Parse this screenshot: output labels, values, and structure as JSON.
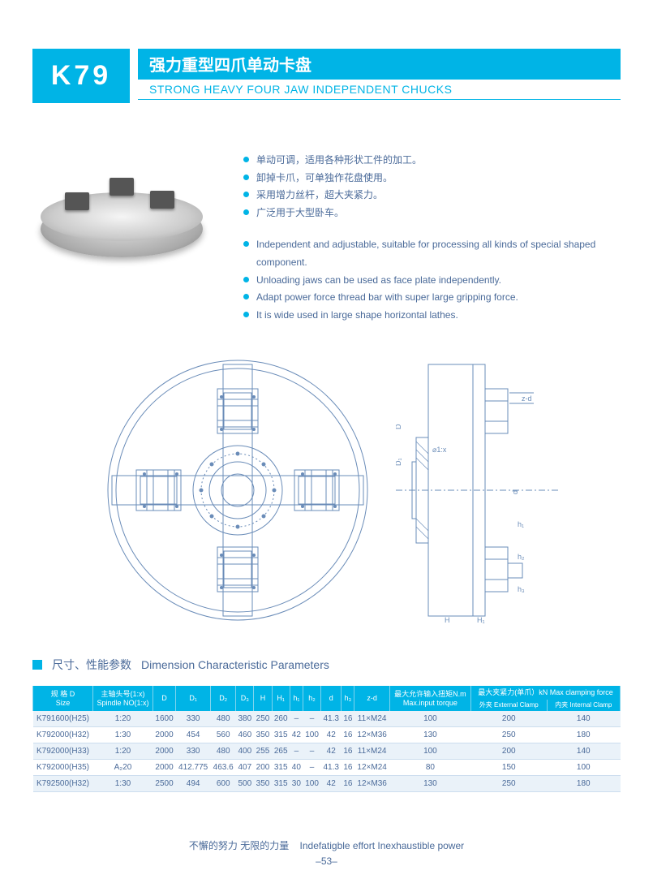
{
  "header": {
    "code": "K79",
    "title_cn": "强力重型四爪单动卡盘",
    "title_en": "STRONG HEAVY FOUR JAW INDEPENDENT CHUCKS"
  },
  "features": {
    "cn": [
      "单动可调，适用各种形状工件的加工。",
      "卸掉卡爪，可单独作花盘使用。",
      "采用增力丝杆，超大夹紧力。",
      "广泛用于大型卧车。"
    ],
    "en": [
      "Independent and adjustable, suitable for processing all kinds of special shaped component.",
      "Unloading jaws can be used as face plate independently.",
      "Adapt power force thread bar with super large gripping force.",
      "It is wide used in large shape horizontal lathes."
    ]
  },
  "section": {
    "label_cn": "尺寸、性能参数",
    "label_en": "Dimension  Characteristic Parameters"
  },
  "table": {
    "columns_top": [
      {
        "label_cn": "规 格 D",
        "label_en": "Size",
        "rowspan": 2
      },
      {
        "label_cn": "主轴头号(1:x)",
        "label_en": "Spindle NO(1:x)",
        "rowspan": 2
      },
      {
        "label": "D",
        "rowspan": 2
      },
      {
        "label": "D₁",
        "rowspan": 2
      },
      {
        "label": "D₂",
        "rowspan": 2
      },
      {
        "label": "D₃",
        "rowspan": 2
      },
      {
        "label": "H",
        "rowspan": 2
      },
      {
        "label": "H₁",
        "rowspan": 2
      },
      {
        "label": "h₁",
        "rowspan": 2
      },
      {
        "label": "h₂",
        "rowspan": 2
      },
      {
        "label": "d",
        "rowspan": 2
      },
      {
        "label": "h₃",
        "rowspan": 2
      },
      {
        "label": "z-d",
        "rowspan": 2
      },
      {
        "label_cn": "最大允许输入扭矩N.m",
        "label_en": "Max.input torque",
        "rowspan": 2
      },
      {
        "label_cn": "最大夹紧力(单爪）kN Max clamping force",
        "colspan": 2
      }
    ],
    "columns_sub": [
      {
        "label": "外夹 External Clamp"
      },
      {
        "label": "内夹 Internal Clamp"
      }
    ],
    "rows": [
      [
        "K791600(H25)",
        "1:20",
        "1600",
        "330",
        "480",
        "380",
        "250",
        "260",
        "–",
        "–",
        "41.3",
        "16",
        "11×M24",
        "100",
        "200",
        "140"
      ],
      [
        "K792000(H32)",
        "1:30",
        "2000",
        "454",
        "560",
        "460",
        "350",
        "315",
        "42",
        "100",
        "42",
        "16",
        "12×M36",
        "130",
        "250",
        "180"
      ],
      [
        "K792000(H33)",
        "1:20",
        "2000",
        "330",
        "480",
        "400",
        "255",
        "265",
        "–",
        "–",
        "42",
        "16",
        "11×M24",
        "100",
        "200",
        "140"
      ],
      [
        "K792000(H35)",
        "A₂20",
        "2000",
        "412.775",
        "463.6",
        "407",
        "200",
        "315",
        "40",
        "–",
        "41.3",
        "16",
        "12×M24",
        "80",
        "150",
        "100"
      ],
      [
        "K792500(H32)",
        "1:30",
        "2500",
        "494",
        "600",
        "500",
        "350",
        "315",
        "30",
        "100",
        "42",
        "16",
        "12×M36",
        "130",
        "250",
        "180"
      ]
    ]
  },
  "footer": {
    "motto_cn": "不懈的努力  无限的力量",
    "motto_en": "Indefatigble effort  Inexhaustible power",
    "page": "–53–"
  },
  "colors": {
    "accent": "#00b4e6",
    "text": "#4a6a99",
    "diagram": "#6a8cb8",
    "row_odd": "#eaf2f9",
    "row_even": "#ffffff"
  }
}
